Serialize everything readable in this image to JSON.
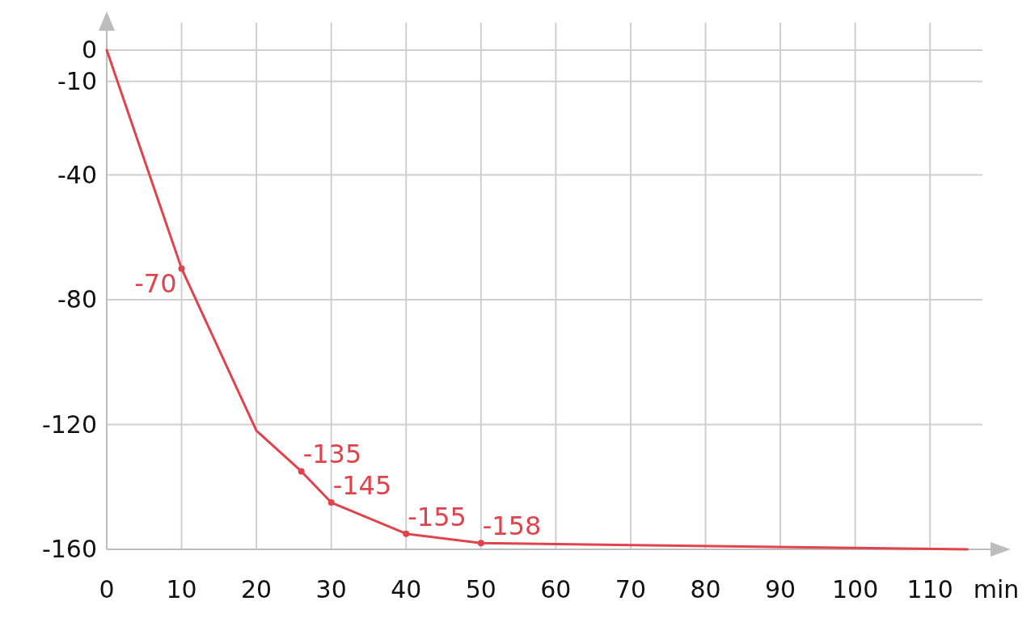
{
  "chart_data": {
    "type": "line",
    "xlabel": "min",
    "x": [
      0,
      10,
      20,
      26,
      30,
      40,
      50,
      115
    ],
    "series": [
      {
        "color": "#e0434c",
        "values": [
          0,
          -70,
          -122,
          -135,
          -145,
          -155,
          -158,
          -160
        ],
        "value_labels": [
          null,
          "-70",
          null,
          "-135",
          "-145",
          "-155",
          "-158",
          null
        ]
      }
    ],
    "xlim": [
      0,
      117
    ],
    "ylim": [
      -160,
      0
    ],
    "xticks": [
      0,
      10,
      20,
      30,
      40,
      50,
      60,
      70,
      80,
      90,
      100,
      110
    ],
    "yticks": [
      0,
      -10,
      -40,
      -80,
      -120,
      -160
    ],
    "grid": true,
    "marker": "circle",
    "line_style": "solid"
  }
}
